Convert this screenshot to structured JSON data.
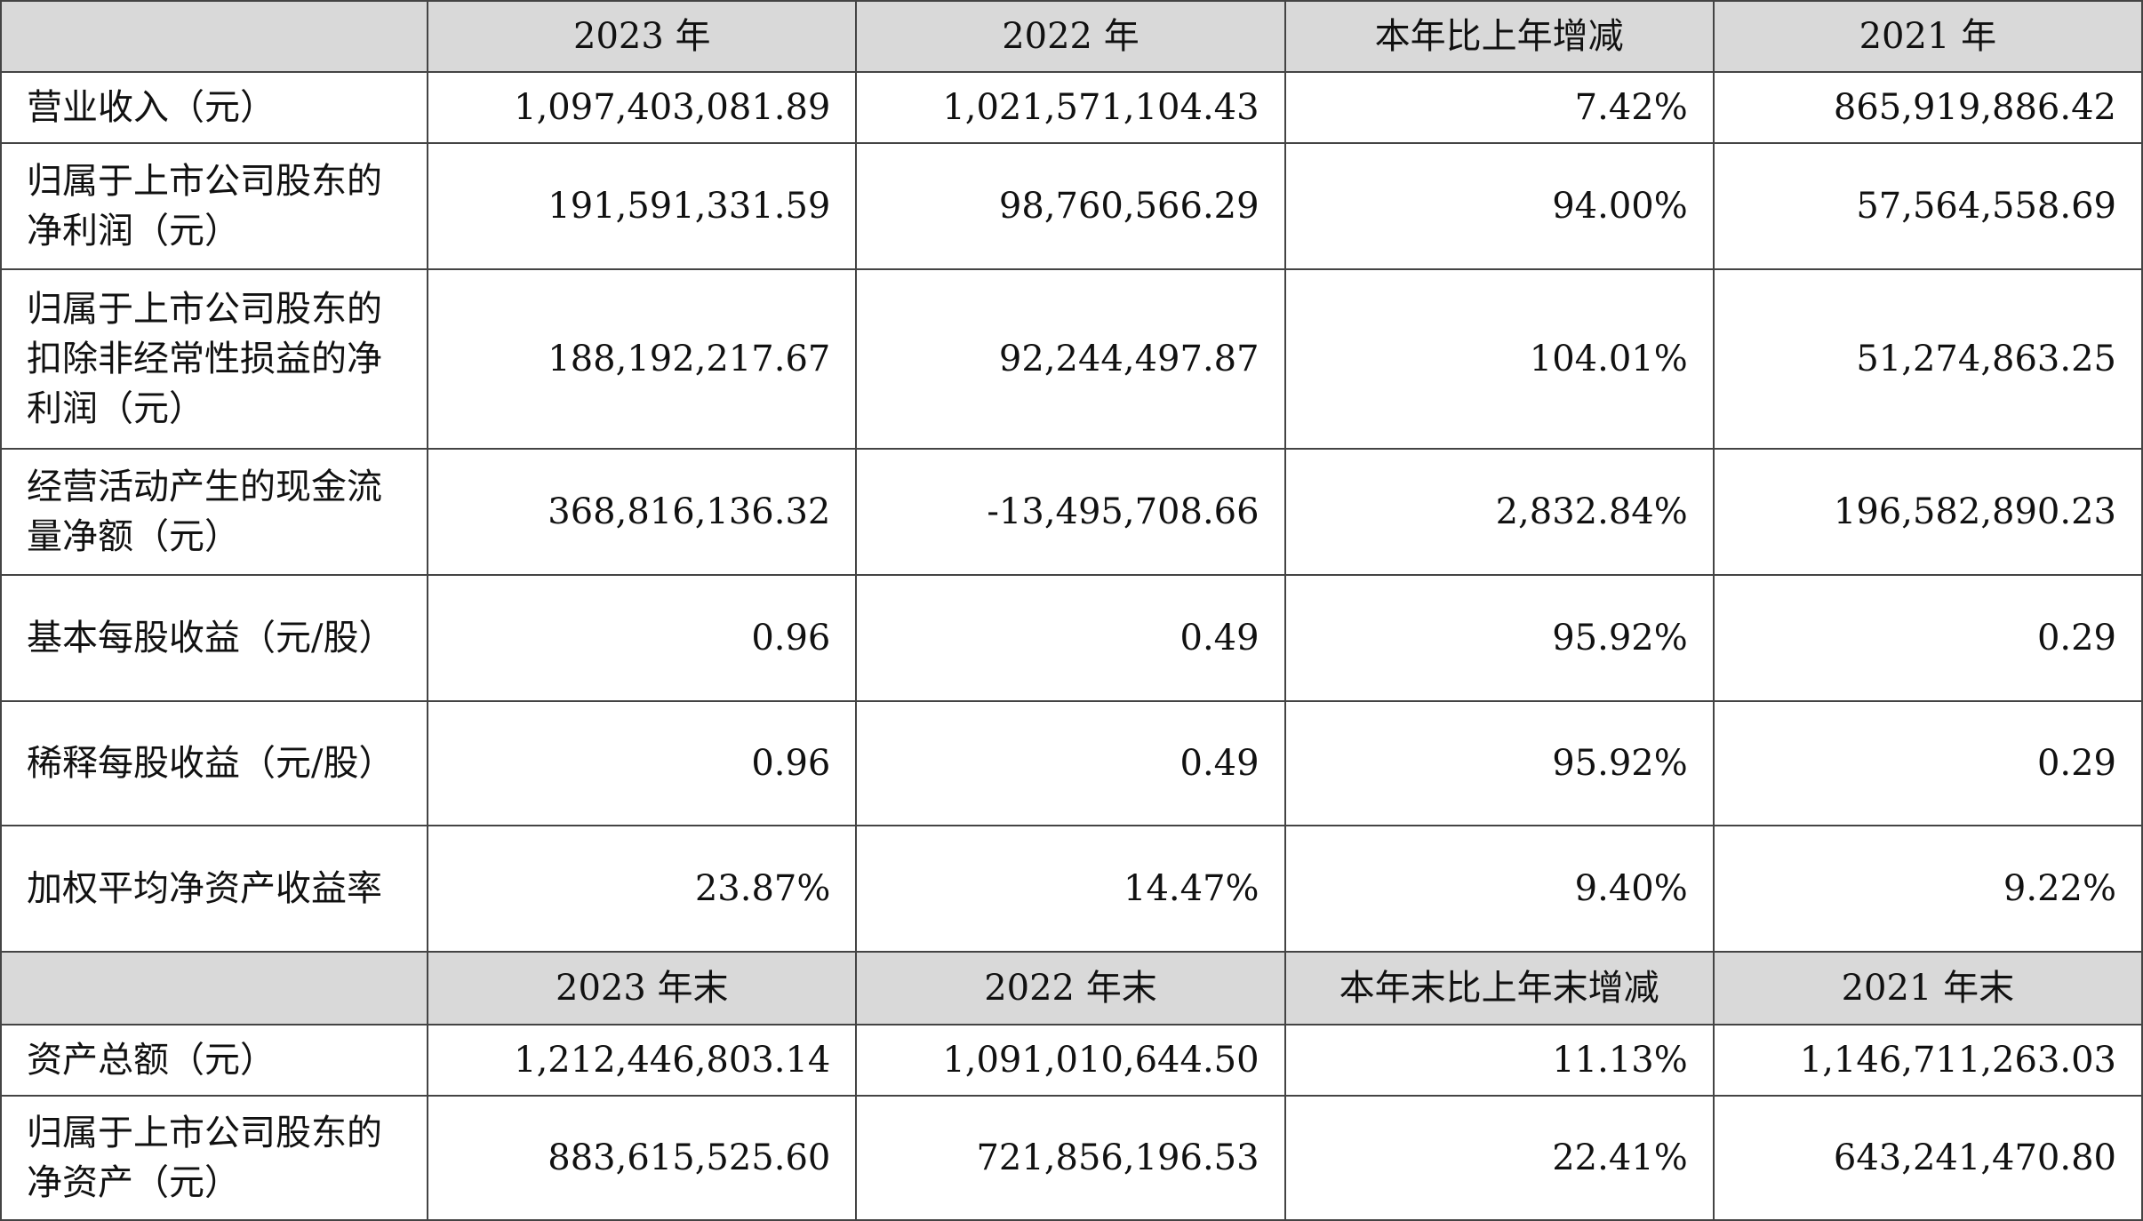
{
  "header1": [
    "",
    "2023 年",
    "2022 年",
    "本年比上年增减",
    "2021 年"
  ],
  "rows1": [
    {
      "label": "营业收入（元）",
      "values": [
        "1,097,403,081.89",
        "1,021,571,104.43",
        "7.42%",
        "865,919,886.42"
      ]
    },
    {
      "label": "归属于上市公司股东的净利润（元）",
      "values": [
        "191,591,331.59",
        "98,760,566.29",
        "94.00%",
        "57,564,558.69"
      ]
    },
    {
      "label": "归属于上市公司股东的扣除非经常性损益的净利润（元）",
      "values": [
        "188,192,217.67",
        "92,244,497.87",
        "104.01%",
        "51,274,863.25"
      ]
    },
    {
      "label": "经营活动产生的现金流量净额（元）",
      "values": [
        "368,816,136.32",
        "-13,495,708.66",
        "2,832.84%",
        "196,582,890.23"
      ]
    },
    {
      "label": "基本每股收益（元/股）",
      "values": [
        "0.96",
        "0.49",
        "95.92%",
        "0.29"
      ]
    },
    {
      "label": "稀释每股收益（元/股）",
      "values": [
        "0.96",
        "0.49",
        "95.92%",
        "0.29"
      ]
    },
    {
      "label": "加权平均净资产收益率",
      "values": [
        "23.87%",
        "14.47%",
        "9.40%",
        "9.22%"
      ]
    }
  ],
  "header2": [
    "",
    "2023 年末",
    "2022 年末",
    "本年末比上年末增减",
    "2021 年末"
  ],
  "rows2": [
    {
      "label": "资产总额（元）",
      "values": [
        "1,212,446,803.14",
        "1,091,010,644.50",
        "11.13%",
        "1,146,711,263.03"
      ]
    },
    {
      "label": "归属于上市公司股东的净资产（元）",
      "values": [
        "883,615,525.60",
        "721,856,196.53",
        "22.41%",
        "643,241,470.80"
      ]
    }
  ]
}
